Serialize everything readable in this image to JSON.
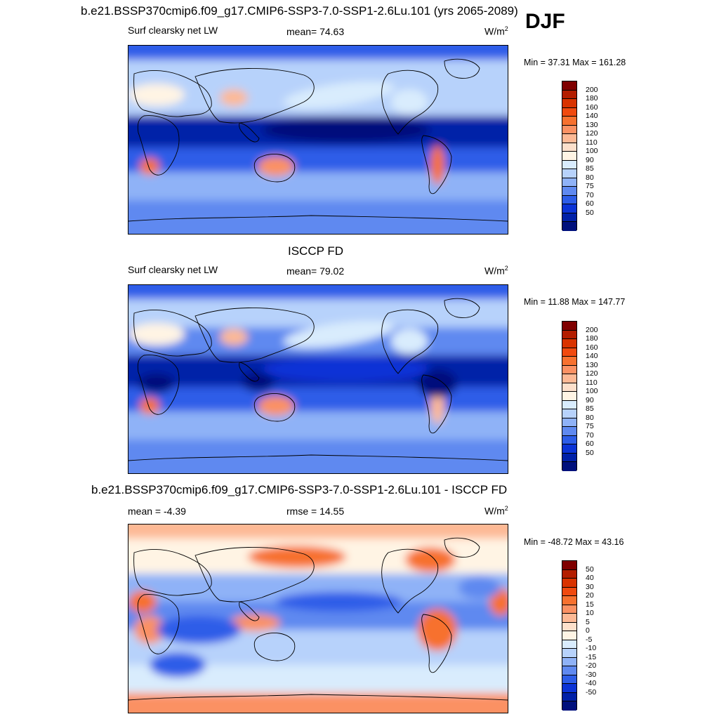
{
  "season": "DJF",
  "units_base": "W/m",
  "units_sup": "2",
  "panels": [
    {
      "title": "b.e21.BSSP370cmip6.f09_g17.CMIP6-SSP3-7.0-SSP1-2.6Lu.101 (yrs 2065-2089)",
      "left_label": "Surf clearsky net LW",
      "center_label": "mean=  74.63",
      "minmax": "Min =  37.31 Max = 161.28",
      "colorbar_levels": [
        "200",
        "180",
        "160",
        "140",
        "130",
        "120",
        "110",
        "100",
        "90",
        "85",
        "80",
        "75",
        "70",
        "60",
        "50"
      ],
      "map_name": "model-map"
    },
    {
      "title": "ISCCP FD",
      "left_label": "Surf clearsky net LW",
      "center_label": "mean=  79.02",
      "minmax": "Min =  11.88 Max = 147.77",
      "colorbar_levels": [
        "200",
        "180",
        "160",
        "140",
        "130",
        "120",
        "110",
        "100",
        "90",
        "85",
        "80",
        "75",
        "70",
        "60",
        "50"
      ],
      "map_name": "obs-map"
    },
    {
      "title": "b.e21.BSSP370cmip6.f09_g17.CMIP6-SSP3-7.0-SSP1-2.6Lu.101 - ISCCP FD",
      "left_label": "mean =  -4.39",
      "center_label": "rmse =  14.55",
      "minmax": "Min = -48.72 Max =  43.16",
      "colorbar_levels": [
        "50",
        "40",
        "30",
        "20",
        "15",
        "10",
        "5",
        "0",
        "-5",
        "-10",
        "-15",
        "-20",
        "-30",
        "-40",
        "-50"
      ],
      "map_name": "diff-map"
    }
  ],
  "colors": {
    "palette": [
      "#7f0000",
      "#b31d00",
      "#d93300",
      "#f04a0f",
      "#f7712f",
      "#fb9163",
      "#fdb995",
      "#fde0cb",
      "#fff4e4",
      "#d9ecfd",
      "#b7d2fb",
      "#8fb2f7",
      "#5f89f0",
      "#2d5de8",
      "#0b33d6",
      "#0020a8",
      "#00107c"
    ]
  },
  "chart_data": [
    {
      "type": "heatmap",
      "title": "b.e21.BSSP370cmip6.f09_g17.CMIP6-SSP3-7.0-SSP1-2.6Lu.101 (yrs 2065-2089)",
      "variable": "Surf clearsky net LW",
      "season": "DJF",
      "units": "W/m2",
      "mean": 74.63,
      "min": 37.31,
      "max": 161.28,
      "contour_levels": [
        50,
        60,
        70,
        75,
        80,
        85,
        90,
        100,
        110,
        120,
        130,
        140,
        160,
        180,
        200
      ]
    },
    {
      "type": "heatmap",
      "title": "ISCCP FD",
      "variable": "Surf clearsky net LW",
      "units": "W/m2",
      "mean": 79.02,
      "min": 11.88,
      "max": 147.77,
      "contour_levels": [
        50,
        60,
        70,
        75,
        80,
        85,
        90,
        100,
        110,
        120,
        130,
        140,
        160,
        180,
        200
      ]
    },
    {
      "type": "heatmap",
      "title": "b.e21.BSSP370cmip6.f09_g17.CMIP6-SSP3-7.0-SSP1-2.6Lu.101 - ISCCP FD",
      "units": "W/m2",
      "mean": -4.39,
      "rmse": 14.55,
      "min": -48.72,
      "max": 43.16,
      "contour_levels": [
        -50,
        -40,
        -30,
        -20,
        -15,
        -10,
        -5,
        0,
        5,
        10,
        15,
        20,
        30,
        40,
        50
      ]
    }
  ]
}
